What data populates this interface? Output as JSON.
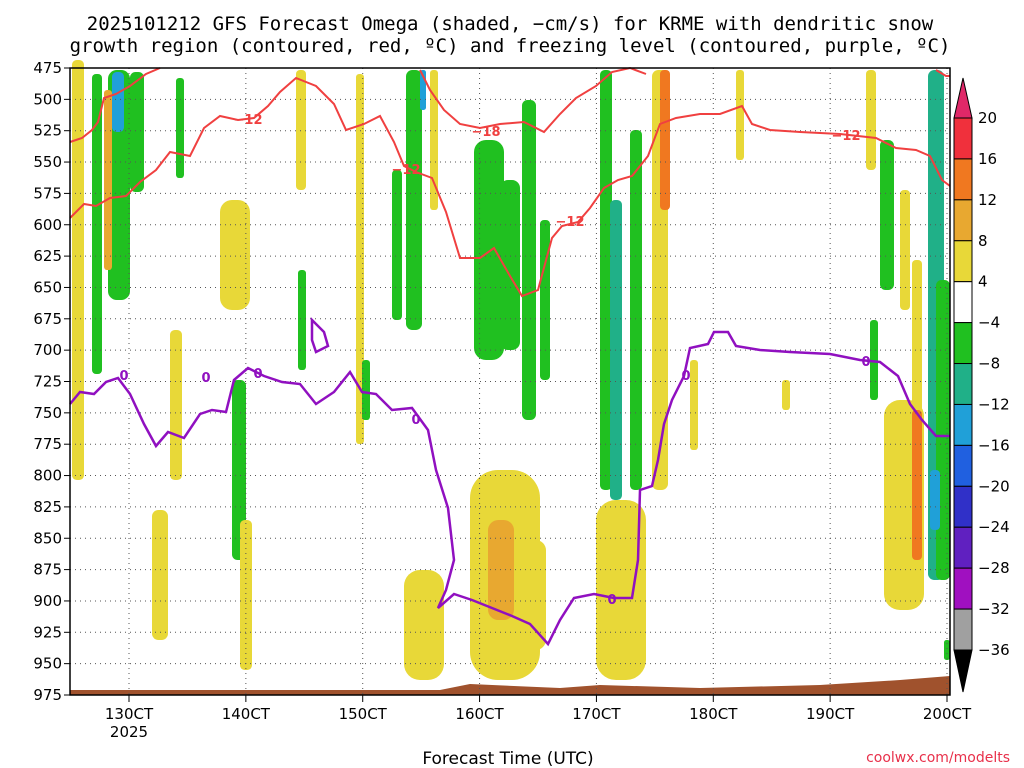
{
  "chart_data": {
    "type": "heatmap",
    "title_line1": "2025101212 GFS Forecast Omega (shaded, −cm/s) for KRME with dendritic snow",
    "title_line2": "growth region (contoured, red, ºC) and freezing level (contoured, purple, ºC)",
    "xlabel": "Forecast Time (UTC)",
    "x_year_label": "2025",
    "credit": "coolwx.com/modelts",
    "x_ticks": [
      "130CT",
      "140CT",
      "150CT",
      "160CT",
      "170CT",
      "180CT",
      "190CT",
      "200CT"
    ],
    "y_ticks": [
      475,
      500,
      525,
      550,
      575,
      600,
      625,
      650,
      675,
      700,
      725,
      750,
      775,
      800,
      825,
      850,
      875,
      900,
      925,
      950,
      975
    ],
    "y_range": [
      475,
      975
    ],
    "colorbar_labels": [
      "20",
      "16",
      "12",
      "8",
      "4",
      "−4",
      "−8",
      "−12",
      "−16",
      "−20",
      "−24",
      "−28",
      "−32",
      "−36"
    ],
    "colorbar_colors": [
      "#e02868",
      "#f0303c",
      "#f07820",
      "#e8a830",
      "#e8d838",
      "#ffffff",
      "#20c020",
      "#20b088",
      "#20a0d8",
      "#2060e0",
      "#3030c8",
      "#6020c0",
      "#a010c0",
      "#a0a0a0",
      "#000000"
    ],
    "contour_labels": {
      "dgz": [
        "−12",
        "−18",
        "−12",
        "−12",
        "−12"
      ],
      "freezing": [
        "0",
        "0",
        "0",
        "0",
        "0",
        "0",
        "0"
      ]
    },
    "colors": {
      "dgz_line": "#f04040",
      "freezing_line": "#9010c0",
      "terrain": "#a0522d",
      "grid": "#555555"
    }
  }
}
